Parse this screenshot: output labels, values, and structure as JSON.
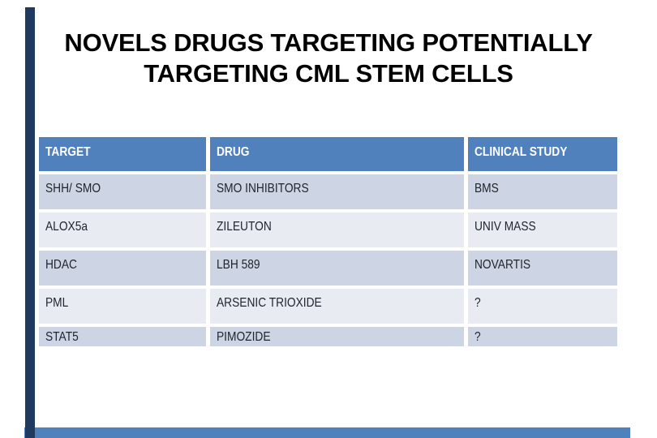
{
  "title": {
    "line1": "NOVELS DRUGS TARGETING POTENTIALLY",
    "line2": "TARGETING CML STEM CELLS"
  },
  "table": {
    "headers": [
      "TARGET",
      "DRUG",
      "CLINICAL STUDY"
    ],
    "rows": [
      [
        "SHH/ SMO",
        "SMO INHIBITORS",
        "BMS"
      ],
      [
        "ALOX5a",
        "ZILEUTON",
        "UNIV MASS"
      ],
      [
        "HDAC",
        "LBH 589",
        "NOVARTIS"
      ],
      [
        "PML",
        "ARSENIC TRIOXIDE",
        "?"
      ],
      [
        "STAT5",
        "PIMOZIDE",
        "?"
      ]
    ]
  },
  "colors": {
    "header_bg": "#5081BD",
    "band_dark": "#CDD5E4",
    "band_light": "#E9EBF3",
    "left_accent_bar": "#1E3A5F",
    "bottom_accent_bar": "#4F81BD",
    "header_text": "#FFFFFF",
    "body_text": "#20262E",
    "title_text": "#000000",
    "background": "#FFFFFF"
  }
}
